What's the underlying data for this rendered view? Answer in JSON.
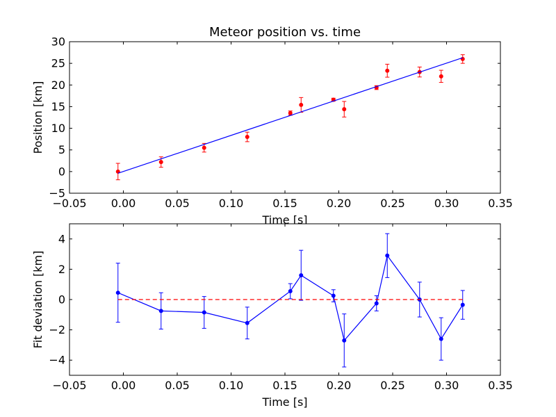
{
  "chart_data": [
    {
      "type": "scatter",
      "title": "Meteor position vs. time",
      "xlabel": "Time [s]",
      "ylabel": "Position [km]",
      "xlim": [
        -0.05,
        0.35
      ],
      "ylim": [
        -5,
        30
      ],
      "xticks": [
        -0.05,
        0.0,
        0.05,
        0.1,
        0.15,
        0.2,
        0.25,
        0.3,
        0.35
      ],
      "xtick_labels": [
        "−0.05",
        "0.00",
        "0.05",
        "0.10",
        "0.15",
        "0.20",
        "0.25",
        "0.30",
        "0.35"
      ],
      "yticks": [
        -5,
        0,
        5,
        10,
        15,
        20,
        25,
        30
      ],
      "ytick_labels": [
        "−5",
        "0",
        "5",
        "10",
        "15",
        "20",
        "25",
        "30"
      ],
      "grid": false,
      "series": [
        {
          "kind": "errorbar-points",
          "color": "#ff0000",
          "x": [
            -0.005,
            0.035,
            0.075,
            0.115,
            0.155,
            0.165,
            0.195,
            0.205,
            0.235,
            0.245,
            0.275,
            0.295,
            0.315
          ],
          "y": [
            0.0,
            2.2,
            5.5,
            8.0,
            13.5,
            15.4,
            16.6,
            14.4,
            19.4,
            23.3,
            23.0,
            22.0,
            26.0
          ],
          "yerr": [
            1.9,
            1.2,
            1.0,
            1.1,
            0.5,
            1.7,
            0.35,
            1.8,
            0.45,
            1.5,
            1.15,
            1.4,
            1.0
          ]
        },
        {
          "kind": "line",
          "color": "#0000ff",
          "x": [
            -0.005,
            0.315
          ],
          "y": [
            -0.4,
            26.3
          ]
        }
      ]
    },
    {
      "type": "line",
      "title": "",
      "xlabel": "Time [s]",
      "ylabel": "Fit deviation [km]",
      "xlim": [
        -0.05,
        0.35
      ],
      "ylim": [
        -5,
        5
      ],
      "xticks": [
        -0.05,
        0.0,
        0.05,
        0.1,
        0.15,
        0.2,
        0.25,
        0.3,
        0.35
      ],
      "xtick_labels": [
        "−0.05",
        "0.00",
        "0.05",
        "0.10",
        "0.15",
        "0.20",
        "0.25",
        "0.30",
        "0.35"
      ],
      "yticks": [
        -4,
        -2,
        0,
        2,
        4
      ],
      "ytick_labels": [
        "−4",
        "−2",
        "0",
        "2",
        "4"
      ],
      "grid": false,
      "series": [
        {
          "kind": "errorbar-line",
          "color": "#0000ff",
          "x": [
            -0.005,
            0.035,
            0.075,
            0.115,
            0.155,
            0.165,
            0.195,
            0.205,
            0.235,
            0.245,
            0.275,
            0.295,
            0.315
          ],
          "y": [
            0.45,
            -0.75,
            -0.85,
            -1.55,
            0.55,
            1.6,
            0.25,
            -2.7,
            -0.25,
            2.9,
            0.0,
            -2.6,
            -0.35
          ],
          "yerr": [
            1.95,
            1.2,
            1.05,
            1.05,
            0.5,
            1.65,
            0.4,
            1.75,
            0.5,
            1.45,
            1.15,
            1.4,
            0.95
          ]
        },
        {
          "kind": "dashed-line",
          "color": "#ff0000",
          "x": [
            -0.005,
            0.315
          ],
          "y": [
            0,
            0
          ]
        }
      ]
    }
  ]
}
